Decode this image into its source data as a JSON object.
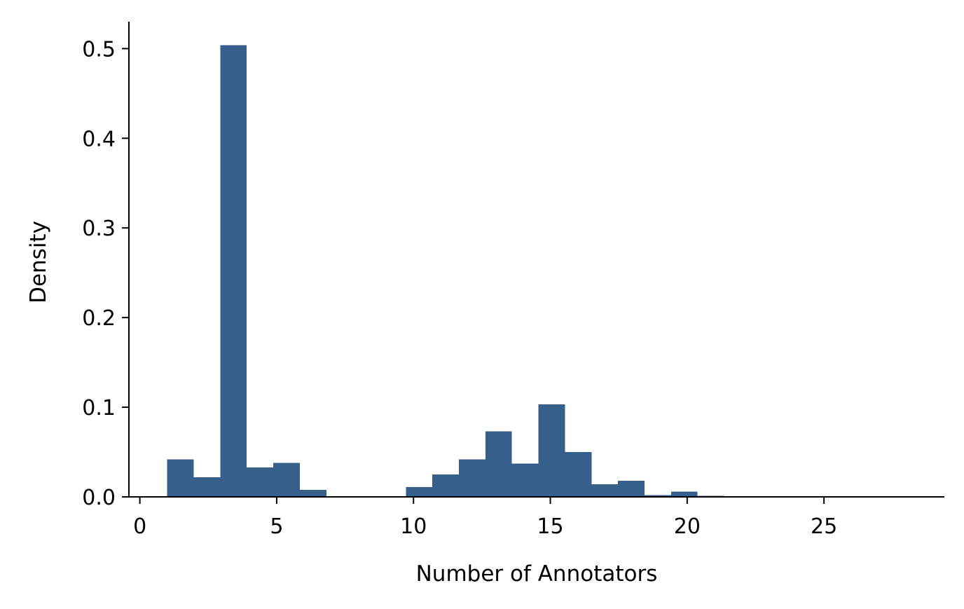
{
  "chart_data": {
    "type": "bar",
    "subtype": "histogram",
    "xlabel": "Number of Annotators",
    "ylabel": "Density",
    "xlim": [
      -0.4,
      29.4
    ],
    "ylim": [
      0,
      0.53
    ],
    "xticks": [
      0,
      5,
      10,
      15,
      20,
      25
    ],
    "yticks": [
      0.0,
      0.1,
      0.2,
      0.3,
      0.4,
      0.5
    ],
    "xtick_labels": [
      "0",
      "5",
      "10",
      "15",
      "20",
      "25"
    ],
    "ytick_labels": [
      "0.0",
      "0.1",
      "0.2",
      "0.3",
      "0.4",
      "0.5"
    ],
    "bin_start": 1.0,
    "bin_width": 0.969,
    "bins": [
      {
        "x0": 1.0,
        "x1": 1.969,
        "density": 0.042
      },
      {
        "x0": 1.969,
        "x1": 2.938,
        "density": 0.022
      },
      {
        "x0": 2.938,
        "x1": 3.907,
        "density": 0.504
      },
      {
        "x0": 3.907,
        "x1": 4.876,
        "density": 0.033
      },
      {
        "x0": 4.876,
        "x1": 5.845,
        "density": 0.038
      },
      {
        "x0": 5.845,
        "x1": 6.814,
        "density": 0.008
      },
      {
        "x0": 6.814,
        "x1": 7.783,
        "density": 0.0
      },
      {
        "x0": 7.783,
        "x1": 8.752,
        "density": 0.0
      },
      {
        "x0": 8.752,
        "x1": 9.721,
        "density": 0.0
      },
      {
        "x0": 9.721,
        "x1": 10.69,
        "density": 0.011
      },
      {
        "x0": 10.69,
        "x1": 11.659,
        "density": 0.025
      },
      {
        "x0": 11.659,
        "x1": 12.628,
        "density": 0.042
      },
      {
        "x0": 12.628,
        "x1": 13.597,
        "density": 0.073
      },
      {
        "x0": 13.597,
        "x1": 14.566,
        "density": 0.037
      },
      {
        "x0": 14.566,
        "x1": 15.535,
        "density": 0.103
      },
      {
        "x0": 15.535,
        "x1": 16.504,
        "density": 0.05
      },
      {
        "x0": 16.504,
        "x1": 17.473,
        "density": 0.014
      },
      {
        "x0": 17.473,
        "x1": 18.442,
        "density": 0.018
      },
      {
        "x0": 18.442,
        "x1": 19.411,
        "density": 0.002
      },
      {
        "x0": 19.411,
        "x1": 20.38,
        "density": 0.006
      },
      {
        "x0": 20.38,
        "x1": 21.349,
        "density": 0.001
      },
      {
        "x0": 21.349,
        "x1": 22.318,
        "density": 0.0
      },
      {
        "x0": 22.318,
        "x1": 23.287,
        "density": 0.0
      },
      {
        "x0": 23.287,
        "x1": 24.256,
        "density": 0.0
      },
      {
        "x0": 24.256,
        "x1": 25.225,
        "density": 0.0
      },
      {
        "x0": 25.225,
        "x1": 26.194,
        "density": 0.0
      },
      {
        "x0": 26.194,
        "x1": 27.163,
        "density": 0.0
      },
      {
        "x0": 27.163,
        "x1": 28.132,
        "density": 0.0
      },
      {
        "x0": 28.132,
        "x1": 29.101,
        "density": 0.0
      }
    ],
    "bar_color": "#365f8c",
    "axis_color": "#000000",
    "grid": false,
    "spines": "left-bottom"
  }
}
